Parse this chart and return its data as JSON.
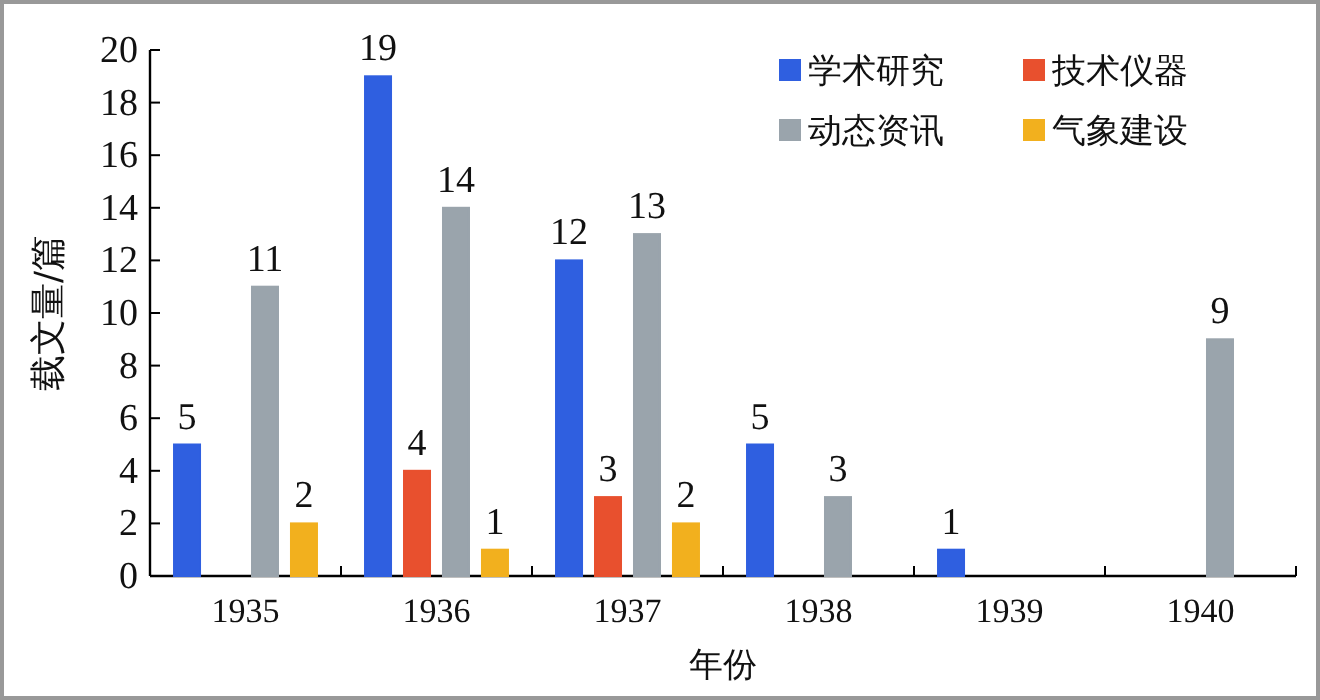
{
  "chart_data": {
    "type": "bar",
    "xlabel": "年份",
    "ylabel": "载文量/篇",
    "categories": [
      "1935",
      "1936",
      "1937",
      "1938",
      "1939",
      "1940"
    ],
    "series": [
      {
        "name": "学术研究",
        "color": "#2f5fe0",
        "values": [
          5,
          19,
          12,
          5,
          1,
          0
        ],
        "value_labels": [
          "5",
          "19",
          "12",
          "5",
          "1",
          null
        ]
      },
      {
        "name": "技术仪器",
        "color": "#e8502e",
        "values": [
          0,
          4,
          3,
          0,
          0,
          0
        ],
        "value_labels": [
          null,
          "4",
          "3",
          null,
          null,
          null
        ]
      },
      {
        "name": "动态资讯",
        "color": "#9aa4ac",
        "values": [
          11,
          14,
          13,
          3,
          0,
          9
        ],
        "value_labels": [
          "11",
          "14",
          "13",
          "3",
          null,
          "9"
        ]
      },
      {
        "name": "气象建设",
        "color": "#f2b01e",
        "values": [
          2,
          1,
          2,
          0,
          0,
          0
        ],
        "value_labels": [
          "2",
          "1",
          "2",
          null,
          null,
          null
        ]
      }
    ],
    "ylim": [
      0,
      20
    ],
    "yticks": [
      0,
      2,
      4,
      6,
      8,
      10,
      12,
      14,
      16,
      18,
      20
    ],
    "grid": false,
    "legend": "top right"
  }
}
